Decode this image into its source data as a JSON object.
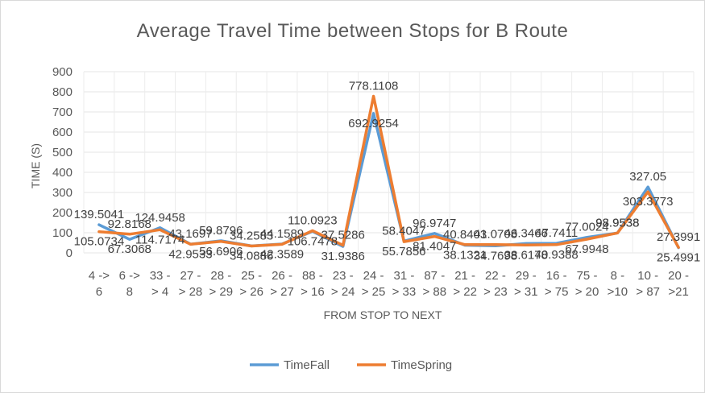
{
  "chart_data": {
    "type": "line",
    "title": "Average Travel Time between Stops for B Route",
    "xlabel": "FROM STOP TO NEXT",
    "ylabel": "TIME (S)",
    "ylim": [
      0,
      900
    ],
    "yticks": [
      0,
      100,
      200,
      300,
      400,
      500,
      600,
      700,
      800,
      900
    ],
    "grid": true,
    "legend_position": "bottom",
    "categories": [
      [
        "4 ->",
        "6"
      ],
      [
        "6 ->",
        "8"
      ],
      [
        "33 -",
        "> 4"
      ],
      [
        "27 -",
        "> 28"
      ],
      [
        "28 -",
        "> 29"
      ],
      [
        "25 -",
        "> 26"
      ],
      [
        "26 -",
        "> 27"
      ],
      [
        "88 -",
        "> 16"
      ],
      [
        "23 -",
        "> 24"
      ],
      [
        "24 -",
        "> 25"
      ],
      [
        "31 -",
        "> 33"
      ],
      [
        "87 -",
        "> 88"
      ],
      [
        "21 -",
        "> 22"
      ],
      [
        "22 -",
        "> 23"
      ],
      [
        "29 -",
        "> 31"
      ],
      [
        "16 -",
        "> 75"
      ],
      [
        "75 -",
        "> 20"
      ],
      [
        "8 -",
        ">10"
      ],
      [
        "10 -",
        "> 87"
      ],
      [
        "20 -",
        ">21"
      ]
    ],
    "series": [
      {
        "name": "TimeFall",
        "color": "#5b9bd5",
        "values": [
          139.5041,
          67.3068,
          124.9458,
          43.1697,
          59.8796,
          34.2583,
          44.1589,
          106.7478,
          31.9386,
          692.9254,
          58.4047,
          96.9747,
          38.1321,
          34.7698,
          46.3466,
          47.7411,
          77.0024,
          98.9538,
          327.05,
          25.4991
        ],
        "labels": [
          "139.5041",
          "67.3068",
          "124.9458",
          "43.1697",
          "59.8796",
          "34.2583",
          "44.1589",
          "106.7478",
          "31.9386",
          "692.9254",
          "58.4047",
          "96.9747",
          "38.1321",
          "34.7698",
          "46.3466",
          "47.7411",
          "77.0024",
          "98.9538",
          "327.05",
          "25.4991"
        ]
      },
      {
        "name": "TimeSpring",
        "color": "#ed7d31",
        "values": [
          105.0734,
          92.8168,
          114.7174,
          42.9533,
          56.6906,
          34.0886,
          42.3589,
          110.0923,
          37.5286,
          778.1108,
          55.7856,
          81.4047,
          40.8403,
          41.0708,
          38.6178,
          40.9388,
          67.9948,
          98.9538,
          303.3773,
          27.3991
        ],
        "labels": [
          "105.0734",
          "92.8168",
          "114.7174",
          "42.9533",
          "56.6906",
          "34.0886",
          "42.3589",
          "110.0923",
          "37.5286",
          "778.1108",
          "55.7856",
          "81.4047",
          "40.8403",
          "41.0708",
          "38.6178",
          "40.9388",
          "67.9948",
          "98.9538",
          "303.3773",
          "27.3991"
        ]
      }
    ]
  }
}
